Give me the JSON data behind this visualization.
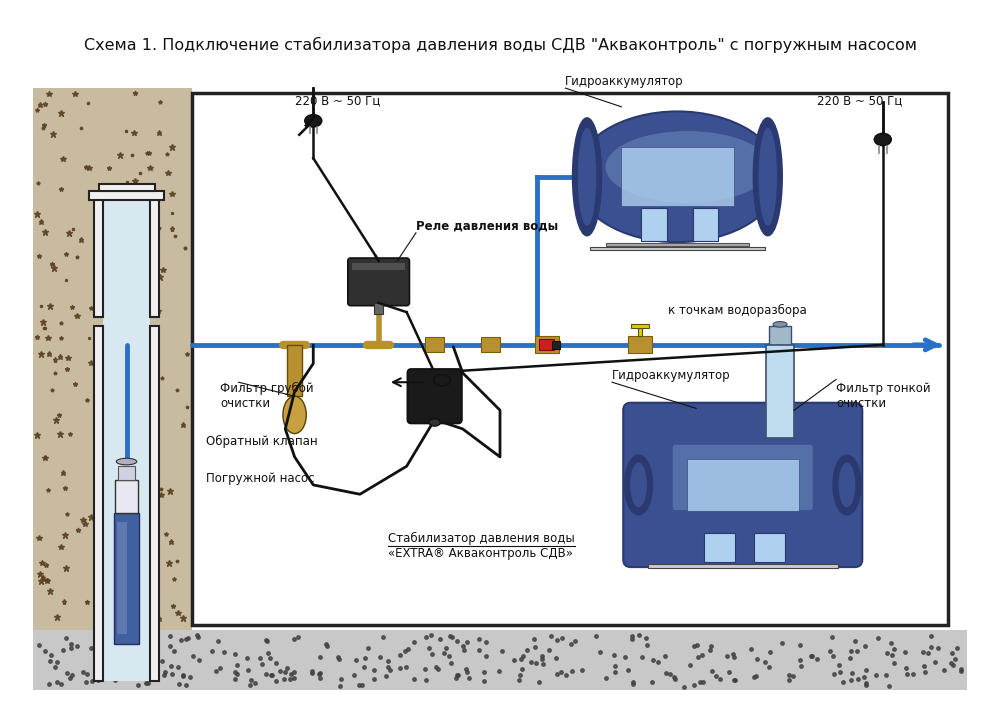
{
  "title": "Схема 1. Подключение стабилизатора давления воды СДВ \"Акваконтроль\" с погружным насосом",
  "title_fontsize": 11.5,
  "bg_color": "#ffffff",
  "labels": {
    "voltage_left": "220 В ~ 50 Гц",
    "voltage_right": "220 В ~ 50 Гц",
    "relay": "Реле давления воды",
    "hydro_top": "Гидроаккумулятор",
    "hydro_bottom": "Гидроаккумулятор",
    "filter_rough": "Фильтр грубой\nочистки",
    "filter_fine": "Фильтр тонкой\nочистки",
    "check_valve": "Обратный клапан",
    "pump": "Погружной насос",
    "stabilizer": "Стабилизатор давления воды\n«EXTRA® Акваконтроль СДВ»",
    "water_points": "к точкам водоразбора"
  },
  "colors": {
    "soil_bg": "#c8bba0",
    "soil_dot": "#5a4020",
    "hydro_dark": "#2a3a70",
    "hydro_mid": "#3a5090",
    "hydro_light": "#7090c0",
    "hydro_highlight": "#a0c0e8",
    "hydro_window": "#b0d0f0",
    "pipe_blue": "#2870c8",
    "wire_black": "#111111",
    "relay_dark": "#303030",
    "relay_mid": "#484848",
    "fitting_gold": "#b89030",
    "fitting_light": "#d8b050",
    "valve_red": "#cc2020",
    "valve_yellow": "#e0cc00",
    "filter_clear": "#c0ddf0",
    "filter_head": "#a0b8c8",
    "pump_blue": "#4060a0",
    "pump_light": "#8090c0",
    "pump_white": "#e8e8f0",
    "well_white": "#f0f0f0",
    "well_inner": "#d8eef8",
    "ground_row": "#888888",
    "stand_grey": "#aaaaaa",
    "border": "#222222"
  }
}
